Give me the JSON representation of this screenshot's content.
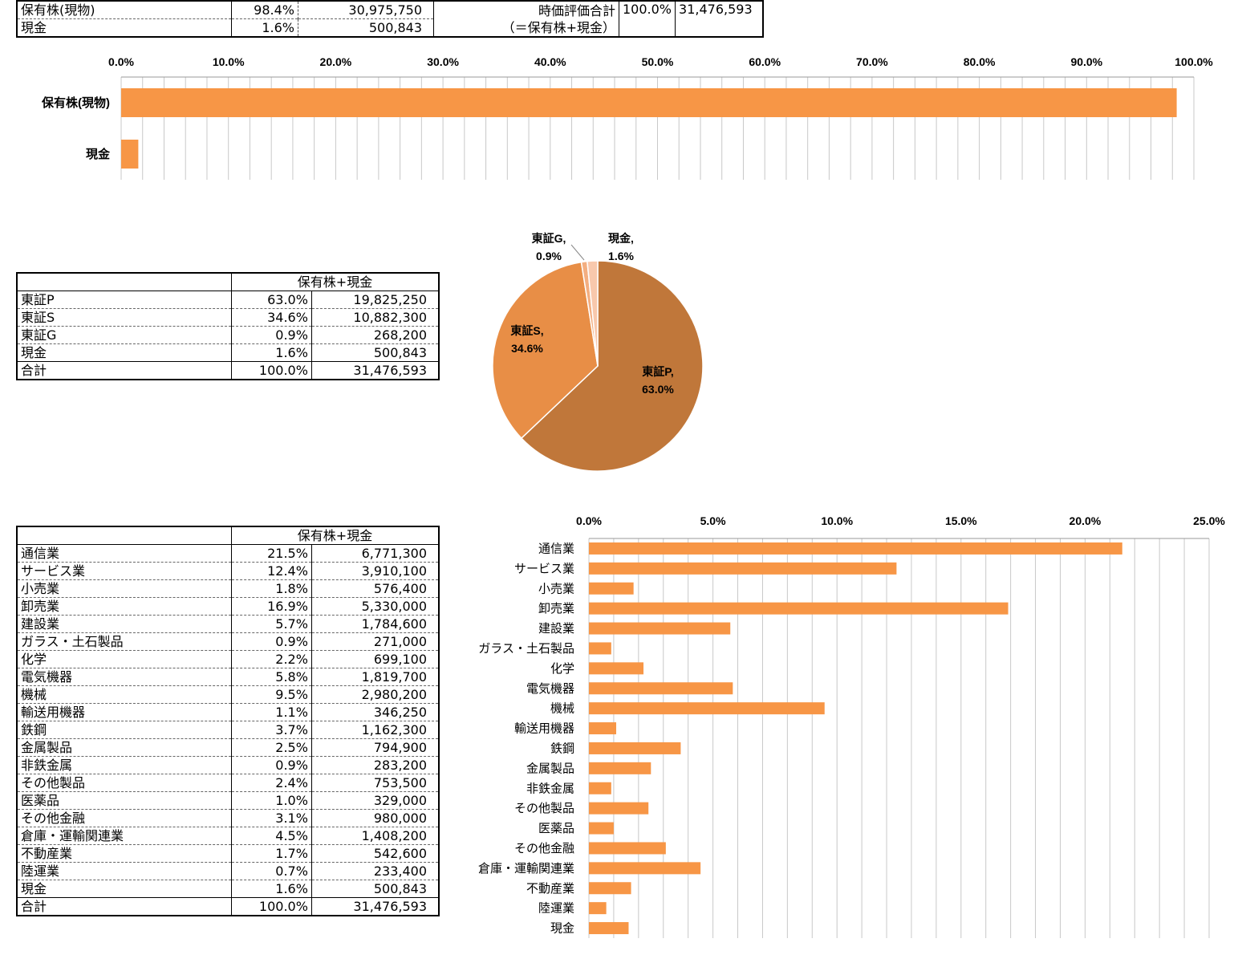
{
  "summary_table": {
    "rows": [
      {
        "label": "保有株(現物)",
        "pct": "98.4%",
        "value": "30,975,750"
      },
      {
        "label": "現金",
        "pct": "1.6%",
        "value": "500,843"
      }
    ],
    "total_label_1": "時価評価合計",
    "total_label_2": "（＝保有株+現金）",
    "total_pct": "100.0%",
    "total_value": "31,476,593"
  },
  "market_table": {
    "header": "保有株+現金",
    "rows": [
      {
        "label": "東証P",
        "pct": "63.0%",
        "value": "19,825,250"
      },
      {
        "label": "東証S",
        "pct": "34.6%",
        "value": "10,882,300"
      },
      {
        "label": "東証G",
        "pct": "0.9%",
        "value": "268,200"
      },
      {
        "label": "現金",
        "pct": "1.6%",
        "value": "500,843"
      }
    ],
    "total": {
      "label": "合計",
      "pct": "100.0%",
      "value": "31,476,593"
    }
  },
  "sector_table": {
    "header": "保有株+現金",
    "rows": [
      {
        "label": "通信業",
        "pct": "21.5%",
        "value": "6,771,300"
      },
      {
        "label": "サービス業",
        "pct": "12.4%",
        "value": "3,910,100"
      },
      {
        "label": "小売業",
        "pct": "1.8%",
        "value": "576,400"
      },
      {
        "label": "卸売業",
        "pct": "16.9%",
        "value": "5,330,000"
      },
      {
        "label": "建設業",
        "pct": "5.7%",
        "value": "1,784,600"
      },
      {
        "label": "ガラス・土石製品",
        "pct": "0.9%",
        "value": "271,000"
      },
      {
        "label": "化学",
        "pct": "2.2%",
        "value": "699,100"
      },
      {
        "label": "電気機器",
        "pct": "5.8%",
        "value": "1,819,700"
      },
      {
        "label": "機械",
        "pct": "9.5%",
        "value": "2,980,200"
      },
      {
        "label": "輸送用機器",
        "pct": "1.1%",
        "value": "346,250"
      },
      {
        "label": "鉄鋼",
        "pct": "3.7%",
        "value": "1,162,300"
      },
      {
        "label": "金属製品",
        "pct": "2.5%",
        "value": "794,900"
      },
      {
        "label": "非鉄金属",
        "pct": "0.9%",
        "value": "283,200"
      },
      {
        "label": "その他製品",
        "pct": "2.4%",
        "value": "753,500"
      },
      {
        "label": "医薬品",
        "pct": "1.0%",
        "value": "329,000"
      },
      {
        "label": "その他金融",
        "pct": "3.1%",
        "value": "980,000"
      },
      {
        "label": "倉庫・運輸関連業",
        "pct": "4.5%",
        "value": "1,408,200"
      },
      {
        "label": "不動産業",
        "pct": "1.7%",
        "value": "542,600"
      },
      {
        "label": "陸運業",
        "pct": "0.7%",
        "value": "233,400"
      },
      {
        "label": "現金",
        "pct": "1.6%",
        "value": "500,843"
      }
    ],
    "total": {
      "label": "合計",
      "pct": "100.0%",
      "value": "31,476,593"
    }
  },
  "chart_data": [
    {
      "type": "bar",
      "orientation": "horizontal",
      "categories": [
        "保有株(現物)",
        "現金"
      ],
      "values": [
        98.4,
        1.6
      ],
      "xlim": [
        0,
        100
      ],
      "xticks": [
        "0.0%",
        "10.0%",
        "20.0%",
        "30.0%",
        "40.0%",
        "50.0%",
        "60.0%",
        "70.0%",
        "80.0%",
        "90.0%",
        "100.0%"
      ],
      "axis_position": "top",
      "grid": true,
      "color": "#F79646"
    },
    {
      "type": "pie",
      "slices": [
        {
          "label": "東証P",
          "value": 63.0,
          "label_text": "東証P,",
          "pct_text": "63.0%",
          "color": "#C0773A"
        },
        {
          "label": "東証S",
          "value": 34.6,
          "label_text": "東証S,",
          "pct_text": "34.6%",
          "color": "#E88E46"
        },
        {
          "label": "東証G",
          "value": 0.9,
          "label_text": "東証G,",
          "pct_text": "0.9%",
          "color": "#F3AE80"
        },
        {
          "label": "現金",
          "value": 1.6,
          "label_text": "現金,",
          "pct_text": "1.6%",
          "color": "#F8C8AC"
        }
      ]
    },
    {
      "type": "bar",
      "orientation": "horizontal",
      "categories": [
        "通信業",
        "サービス業",
        "小売業",
        "卸売業",
        "建設業",
        "ガラス・土石製品",
        "化学",
        "電気機器",
        "機械",
        "輸送用機器",
        "鉄鋼",
        "金属製品",
        "非鉄金属",
        "その他製品",
        "医薬品",
        "その他金融",
        "倉庫・運輸関連業",
        "不動産業",
        "陸運業",
        "現金"
      ],
      "values": [
        21.5,
        12.4,
        1.8,
        16.9,
        5.7,
        0.9,
        2.2,
        5.8,
        9.5,
        1.1,
        3.7,
        2.5,
        0.9,
        2.4,
        1.0,
        3.1,
        4.5,
        1.7,
        0.7,
        1.6
      ],
      "xlim": [
        0,
        25
      ],
      "xticks": [
        "0.0%",
        "5.0%",
        "10.0%",
        "15.0%",
        "20.0%",
        "25.0%"
      ],
      "axis_position": "top",
      "grid": true,
      "color": "#F79646"
    }
  ]
}
